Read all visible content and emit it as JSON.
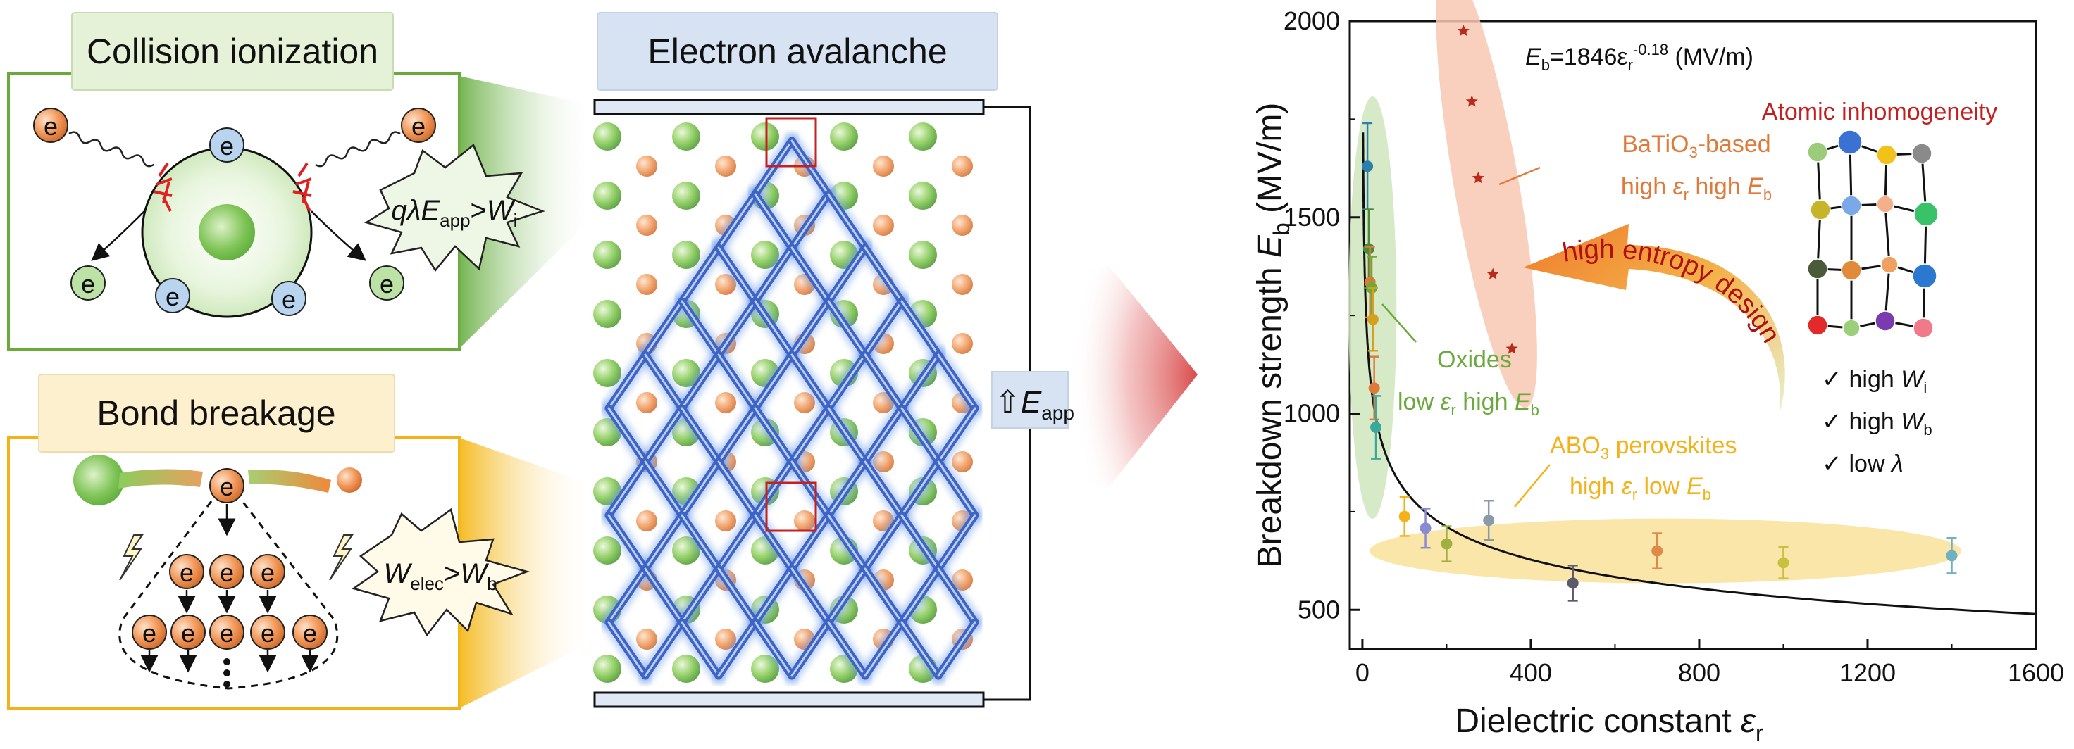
{
  "left_panel": {
    "collision": {
      "title": "Collision ionization",
      "electron": "e",
      "condition_parts": [
        "qλ",
        "E",
        "app",
        ">",
        "W",
        "i"
      ]
    },
    "bond": {
      "title": "Bond breakage",
      "electron": "e",
      "condition_parts": [
        "W",
        "elec",
        ">",
        "W",
        "b"
      ]
    }
  },
  "middle_panel": {
    "title": "Electron avalanche",
    "field_parts": [
      "⇧",
      "E",
      "app"
    ]
  },
  "chart_data": {
    "type": "scatter",
    "xlim": [
      0,
      1600
    ],
    "ylim": [
      500,
      2000
    ],
    "x_ticks": [
      "0",
      "400",
      "800",
      "1200",
      "1600"
    ],
    "y_ticks": [
      "500",
      "1000",
      "1500",
      "2000"
    ],
    "x_label_parts": [
      "Dielectric constant ",
      "ε",
      "r"
    ],
    "y_label_parts": [
      "Breakdown strength ",
      "E",
      "b",
      " (MV/m)"
    ],
    "fit": {
      "equation_parts": [
        "E",
        "b",
        "=1846ε",
        "r",
        "-0.18",
        " (MV/m)"
      ],
      "coefficient": 1846,
      "exponent": -0.18
    },
    "groups": [
      {
        "label_parts": [
          "BaTiO",
          "3",
          "-based",
          "high ",
          "ε",
          "r",
          " high ",
          "E",
          "b"
        ],
        "color": "#e07a3a",
        "points": [
          {
            "x": 240,
            "y": 1975
          },
          {
            "x": 260,
            "y": 1795
          },
          {
            "x": 275,
            "y": 1600
          },
          {
            "x": 310,
            "y": 1355
          },
          {
            "x": 355,
            "y": 1165
          }
        ]
      },
      {
        "label_parts": [
          "Oxides",
          "low ",
          "ε",
          "r",
          " high ",
          "E",
          "b"
        ],
        "color": "#6aaa3c",
        "points": [
          {
            "x": 12,
            "y": 1630,
            "err": 110,
            "color": "#2d7fa8"
          },
          {
            "x": 15,
            "y": 1420,
            "err": 100,
            "color": "#4a8a3a"
          },
          {
            "x": 18,
            "y": 1335,
            "err": 90,
            "color": "#e07a3a"
          },
          {
            "x": 22,
            "y": 1320,
            "err": 80,
            "color": "#6aaa3c"
          },
          {
            "x": 25,
            "y": 1240,
            "err": 80,
            "color": "#d4a020"
          },
          {
            "x": 28,
            "y": 1065,
            "err": 80,
            "color": "#e07a3a"
          },
          {
            "x": 32,
            "y": 965,
            "err": 80,
            "color": "#3aa89a"
          }
        ]
      },
      {
        "label_parts": [
          "ABO",
          "3",
          " perovskites",
          "high ",
          "ε",
          "r",
          " low ",
          "E",
          "b"
        ],
        "color": "#f3b21a",
        "points": [
          {
            "x": 100,
            "y": 738,
            "err": 50,
            "color": "#f3b21a"
          },
          {
            "x": 150,
            "y": 708,
            "err": 50,
            "color": "#8a8ad0"
          },
          {
            "x": 200,
            "y": 668,
            "err": 45,
            "color": "#a0b040"
          },
          {
            "x": 300,
            "y": 728,
            "err": 50,
            "color": "#8a9aa8"
          },
          {
            "x": 500,
            "y": 568,
            "err": 45,
            "color": "#5a5a6a"
          },
          {
            "x": 700,
            "y": 650,
            "err": 45,
            "color": "#e08a4a"
          },
          {
            "x": 1000,
            "y": 620,
            "err": 40,
            "color": "#c8c040"
          },
          {
            "x": 1400,
            "y": 638,
            "err": 45,
            "color": "#70b0c0"
          }
        ]
      }
    ],
    "arrow_label": "high entropy design",
    "inset_title": "Atomic inhomogeneity",
    "checklist": [
      {
        "mark": "✓",
        "parts": [
          "high ",
          "W",
          "i"
        ]
      },
      {
        "mark": "✓",
        "parts": [
          "high ",
          "W",
          "b"
        ]
      },
      {
        "mark": "✓",
        "parts": [
          "low ",
          "λ",
          ""
        ]
      }
    ]
  },
  "colors": {
    "green": "#6fb24a",
    "orange": "#e07a3a",
    "blue": "#6a9fd8",
    "yellow": "#f3b21a",
    "dark_red": "#b01010"
  }
}
